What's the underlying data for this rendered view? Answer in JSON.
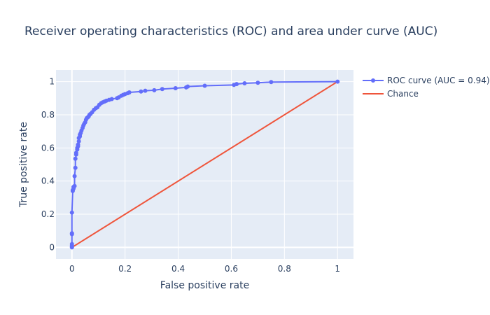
{
  "colors": {
    "plot_bg": "#e5ecf6",
    "grid": "#ffffff",
    "roc": "#636efa",
    "chance": "#ef553b",
    "text": "#2a3f5f"
  },
  "chart_data": {
    "type": "line",
    "title": "Receiver operating characteristics (ROC) and area under curve (AUC)",
    "xlabel": "False positive rate",
    "ylabel": "True positive rate",
    "xlim": [
      -0.06,
      1.06
    ],
    "ylim": [
      -0.07,
      1.07
    ],
    "xticks": [
      0,
      0.2,
      0.4,
      0.6,
      0.8,
      1
    ],
    "xtick_labels": [
      "0",
      "0.2",
      "0.4",
      "0.6",
      "0.8",
      "1"
    ],
    "yticks": [
      0,
      0.2,
      0.4,
      0.6,
      0.8,
      1
    ],
    "ytick_labels": [
      "0",
      "0.2",
      "0.4",
      "0.6",
      "0.8",
      "1"
    ],
    "grid": true,
    "legend_position": "right",
    "series": [
      {
        "name": "ROC curve (AUC = 0.94)",
        "mode": "lines+markers",
        "color": "#636efa",
        "x": [
          0,
          0,
          0,
          0,
          0,
          0,
          0,
          0.003,
          0.003,
          0.006,
          0.006,
          0.01,
          0.01,
          0.013,
          0.013,
          0.016,
          0.016,
          0.02,
          0.02,
          0.023,
          0.023,
          0.026,
          0.026,
          0.03,
          0.03,
          0.033,
          0.036,
          0.04,
          0.043,
          0.046,
          0.05,
          0.053,
          0.056,
          0.06,
          0.063,
          0.066,
          0.07,
          0.076,
          0.083,
          0.09,
          0.096,
          0.103,
          0.11,
          0.116,
          0.123,
          0.13,
          0.14,
          0.15,
          0.17,
          0.176,
          0.186,
          0.193,
          0.2,
          0.21,
          0.216,
          0.26,
          0.276,
          0.31,
          0.34,
          0.39,
          0.43,
          0.436,
          0.5,
          0.61,
          0.62,
          0.65,
          0.7,
          0.75,
          1
        ],
        "y": [
          0,
          0.005,
          0.01,
          0.02,
          0.08,
          0.085,
          0.21,
          0.34,
          0.345,
          0.355,
          0.365,
          0.37,
          0.43,
          0.48,
          0.535,
          0.56,
          0.57,
          0.59,
          0.6,
          0.61,
          0.62,
          0.64,
          0.66,
          0.67,
          0.68,
          0.69,
          0.705,
          0.72,
          0.735,
          0.745,
          0.755,
          0.77,
          0.78,
          0.785,
          0.79,
          0.8,
          0.805,
          0.815,
          0.83,
          0.84,
          0.845,
          0.86,
          0.87,
          0.875,
          0.88,
          0.885,
          0.89,
          0.895,
          0.9,
          0.905,
          0.915,
          0.92,
          0.925,
          0.93,
          0.935,
          0.94,
          0.945,
          0.948,
          0.955,
          0.96,
          0.965,
          0.97,
          0.975,
          0.98,
          0.985,
          0.99,
          0.993,
          0.997,
          1
        ]
      },
      {
        "name": "Chance",
        "mode": "lines",
        "color": "#ef553b",
        "x": [
          0,
          1
        ],
        "y": [
          0,
          1
        ]
      }
    ]
  }
}
